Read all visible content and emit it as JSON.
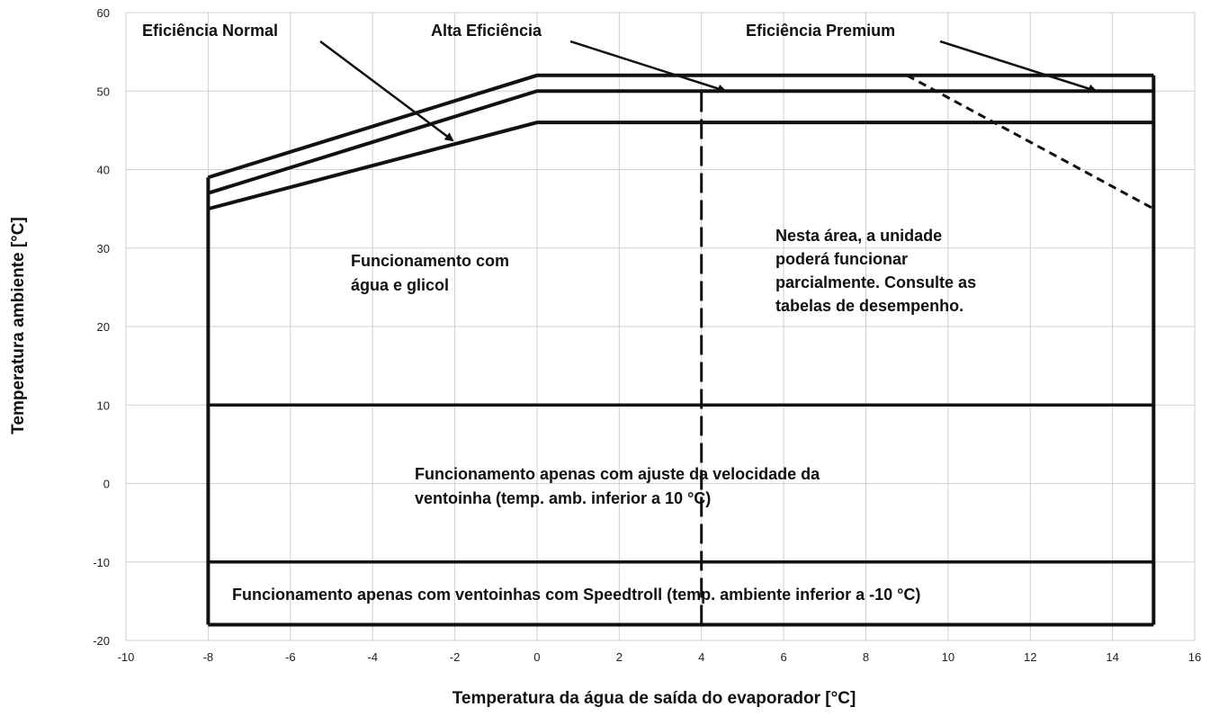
{
  "chart_data": {
    "type": "line",
    "title": "",
    "xlabel": "Temperatura da água de saída do evaporador [°C]",
    "ylabel": "Temperatura ambiente [°C]",
    "xlim": [
      -10,
      16
    ],
    "ylim": [
      -20,
      60
    ],
    "x_ticks": [
      "-10",
      "-8",
      "-6",
      "-4",
      "-2",
      "0",
      "2",
      "4",
      "6",
      "8",
      "10",
      "12",
      "14",
      "16"
    ],
    "y_ticks": [
      "60",
      "50",
      "40",
      "30",
      "20",
      "10",
      "0",
      "-10",
      "-20"
    ],
    "grid": true,
    "series": [
      {
        "name": "Eficiência Normal",
        "x": [
          -8,
          0,
          15
        ],
        "y": [
          35,
          46,
          46
        ]
      },
      {
        "name": "Alta Eficiência",
        "x": [
          -8,
          0,
          15
        ],
        "y": [
          37,
          50,
          50
        ]
      },
      {
        "name": "Eficiência Premium",
        "x": [
          -8,
          0,
          15
        ],
        "y": [
          39,
          52,
          52
        ]
      }
    ],
    "boundaries": {
      "outer_box": {
        "x": [
          -8,
          15
        ],
        "y": [
          -18,
          52
        ]
      },
      "horizontal_lines": [
        {
          "y": 10,
          "x": [
            -8,
            15
          ]
        },
        {
          "y": -10,
          "x": [
            -8,
            15
          ]
        }
      ],
      "partial_load_dashed_vertical": {
        "x": 4,
        "y": [
          -18,
          50
        ]
      },
      "premium_dashed_limit": {
        "x": [
          9,
          15
        ],
        "y": [
          52,
          35
        ]
      }
    },
    "annotations": {
      "series_labels": [
        "Eficiência Normal",
        "Alta Eficiência",
        "Eficiência Premium"
      ],
      "glycol_region": [
        "Funcionamento com",
        "água e glicol"
      ],
      "partial_region": [
        "Nesta área, a unidade",
        "poderá funcionar",
        "parcialmente. Consulte as",
        "tabelas de desempenho."
      ],
      "fan_speed_region": [
        "Funcionamento apenas com ajuste da velocidade da",
        "ventoinha (temp. amb. inferior a 10 °C)"
      ],
      "speedtroll_region": [
        "Funcionamento apenas com ventoinhas com Speedtroll (temp. ambiente inferior a -10 °C)"
      ]
    }
  }
}
